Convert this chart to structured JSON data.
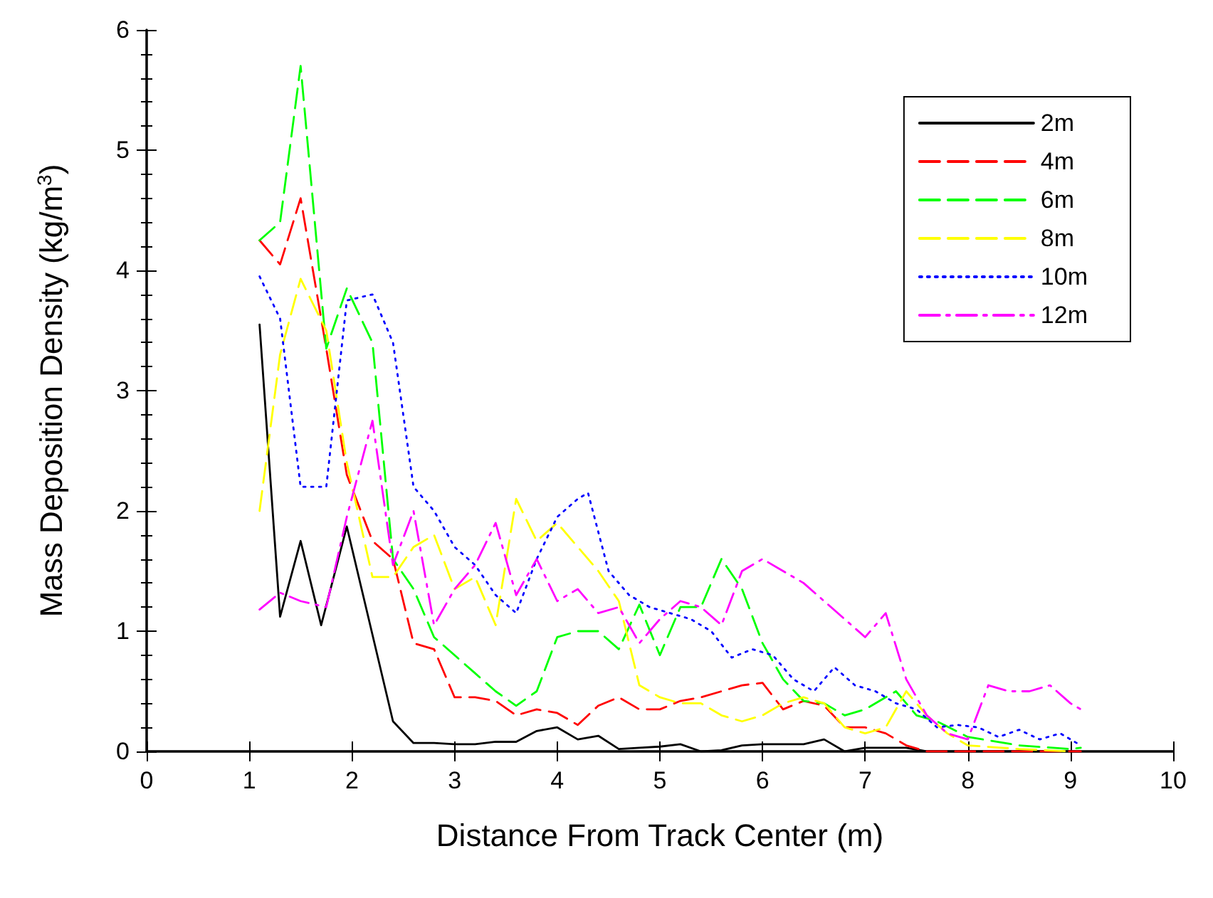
{
  "chart_data": {
    "type": "line",
    "xlabel": "Distance From Track Center (m)",
    "ylabel": "Mass Deposition Density (kg/m$^{3}$)",
    "xlim": [
      0,
      10
    ],
    "xticks": [
      0,
      1,
      2,
      3,
      4,
      5,
      6,
      7,
      8,
      9,
      10
    ],
    "ylim": [
      0,
      6
    ],
    "yticks": [
      0,
      1,
      2,
      3,
      4,
      5,
      6
    ],
    "grid": false,
    "legend": "top right",
    "marker": "none",
    "series": [
      {
        "name": "2m",
        "color": "#000000",
        "line_style": "solid",
        "x": [
          1.1,
          1.3,
          1.5,
          1.7,
          1.95,
          2.4,
          2.6,
          2.8,
          3.0,
          3.2,
          3.4,
          3.6,
          3.8,
          4.0,
          4.2,
          4.4,
          4.6,
          4.8,
          5.0,
          5.2,
          5.4,
          5.6,
          5.8,
          6.0,
          6.2,
          6.4,
          6.6,
          6.8,
          7.0,
          7.2,
          7.4,
          7.6,
          8.0,
          8.5,
          9.1
        ],
        "values": [
          3.55,
          1.12,
          1.75,
          1.05,
          1.87,
          0.25,
          0.07,
          0.07,
          0.06,
          0.06,
          0.08,
          0.08,
          0.17,
          0.2,
          0.1,
          0.13,
          0.02,
          0.03,
          0.04,
          0.06,
          0.0,
          0.01,
          0.05,
          0.06,
          0.06,
          0.06,
          0.1,
          0.0,
          0.03,
          0.03,
          0.03,
          0.0,
          0.0,
          0.0,
          0.0
        ]
      },
      {
        "name": "4m",
        "color": "#ff0000",
        "line_style": "dashed",
        "x": [
          1.1,
          1.3,
          1.5,
          1.75,
          1.95,
          2.2,
          2.4,
          2.6,
          2.8,
          3.0,
          3.2,
          3.4,
          3.6,
          3.8,
          4.0,
          4.2,
          4.4,
          4.6,
          4.8,
          5.0,
          5.2,
          5.4,
          5.6,
          5.8,
          6.0,
          6.2,
          6.4,
          6.6,
          6.8,
          7.0,
          7.2,
          7.4,
          7.6,
          8.0,
          8.5,
          9.1
        ],
        "values": [
          4.25,
          4.05,
          4.6,
          3.35,
          2.3,
          1.75,
          1.6,
          0.9,
          0.85,
          0.45,
          0.45,
          0.42,
          0.3,
          0.35,
          0.32,
          0.22,
          0.38,
          0.45,
          0.35,
          0.35,
          0.42,
          0.45,
          0.5,
          0.55,
          0.57,
          0.35,
          0.42,
          0.38,
          0.2,
          0.2,
          0.15,
          0.05,
          0.0,
          0.0,
          0.0,
          0.0
        ]
      },
      {
        "name": "6m",
        "color": "#00ff00",
        "line_style": "dashed",
        "x": [
          1.1,
          1.3,
          1.5,
          1.75,
          1.95,
          2.2,
          2.4,
          2.6,
          2.8,
          3.0,
          3.2,
          3.4,
          3.6,
          3.8,
          4.0,
          4.2,
          4.4,
          4.6,
          4.8,
          5.0,
          5.2,
          5.4,
          5.6,
          5.8,
          6.0,
          6.2,
          6.4,
          6.6,
          6.8,
          7.0,
          7.3,
          7.5,
          7.7,
          8.0,
          8.5,
          9.0,
          9.1
        ],
        "values": [
          4.25,
          4.4,
          5.7,
          3.35,
          3.85,
          3.4,
          1.6,
          1.35,
          0.95,
          0.8,
          0.65,
          0.5,
          0.38,
          0.5,
          0.95,
          1.0,
          1.0,
          0.85,
          1.22,
          0.8,
          1.2,
          1.2,
          1.6,
          1.35,
          0.9,
          0.6,
          0.42,
          0.4,
          0.3,
          0.35,
          0.5,
          0.3,
          0.25,
          0.12,
          0.05,
          0.02,
          0.03
        ]
      },
      {
        "name": "8m",
        "color": "#ffff00",
        "line_style": "dashed",
        "x": [
          1.1,
          1.3,
          1.5,
          1.75,
          1.95,
          2.2,
          2.4,
          2.6,
          2.8,
          3.0,
          3.2,
          3.4,
          3.6,
          3.8,
          4.0,
          4.2,
          4.4,
          4.6,
          4.8,
          5.0,
          5.2,
          5.4,
          5.6,
          5.8,
          6.0,
          6.2,
          6.4,
          6.6,
          6.8,
          7.0,
          7.2,
          7.4,
          7.6,
          7.8,
          8.0,
          8.5,
          9.0
        ],
        "values": [
          2.0,
          3.3,
          3.93,
          3.5,
          2.4,
          1.45,
          1.45,
          1.7,
          1.8,
          1.35,
          1.45,
          1.05,
          2.1,
          1.75,
          1.9,
          1.7,
          1.5,
          1.25,
          0.55,
          0.45,
          0.4,
          0.4,
          0.3,
          0.25,
          0.3,
          0.4,
          0.45,
          0.4,
          0.2,
          0.15,
          0.2,
          0.5,
          0.3,
          0.15,
          0.05,
          0.02,
          0.0
        ]
      },
      {
        "name": "10m",
        "color": "#0000ff",
        "line_style": "dotted",
        "x": [
          1.1,
          1.3,
          1.5,
          1.75,
          1.95,
          2.2,
          2.4,
          2.6,
          2.8,
          3.0,
          3.2,
          3.4,
          3.6,
          3.8,
          4.0,
          4.2,
          4.3,
          4.5,
          4.7,
          4.9,
          5.1,
          5.3,
          5.5,
          5.7,
          5.9,
          6.1,
          6.3,
          6.5,
          6.7,
          6.9,
          7.1,
          7.3,
          7.5,
          7.7,
          7.9,
          8.1,
          8.3,
          8.5,
          8.7,
          8.9,
          9.1
        ],
        "values": [
          3.95,
          3.6,
          2.2,
          2.2,
          3.75,
          3.8,
          3.4,
          2.2,
          2.0,
          1.7,
          1.55,
          1.3,
          1.15,
          1.6,
          1.95,
          2.1,
          2.15,
          1.5,
          1.3,
          1.2,
          1.15,
          1.1,
          1.0,
          0.78,
          0.85,
          0.8,
          0.6,
          0.5,
          0.7,
          0.55,
          0.5,
          0.4,
          0.35,
          0.2,
          0.22,
          0.2,
          0.12,
          0.18,
          0.1,
          0.15,
          0.05
        ]
      },
      {
        "name": "12m",
        "color": "#ff00ff",
        "line_style": "dashdot",
        "x": [
          1.1,
          1.3,
          1.5,
          1.75,
          1.95,
          2.2,
          2.4,
          2.6,
          2.8,
          3.0,
          3.2,
          3.4,
          3.6,
          3.8,
          4.0,
          4.2,
          4.4,
          4.6,
          4.8,
          5.0,
          5.2,
          5.4,
          5.6,
          5.8,
          6.0,
          6.2,
          6.4,
          6.6,
          6.8,
          7.0,
          7.2,
          7.4,
          7.6,
          7.8,
          8.0,
          8.2,
          8.4,
          8.6,
          8.8,
          9.0,
          9.1
        ],
        "values": [
          1.18,
          1.32,
          1.25,
          1.2,
          1.95,
          2.75,
          1.55,
          2.0,
          1.05,
          1.35,
          1.55,
          1.9,
          1.3,
          1.6,
          1.25,
          1.35,
          1.15,
          1.2,
          0.9,
          1.1,
          1.25,
          1.2,
          1.05,
          1.5,
          1.6,
          1.5,
          1.4,
          1.25,
          1.1,
          0.95,
          1.15,
          0.6,
          0.3,
          0.15,
          0.1,
          0.55,
          0.5,
          0.5,
          0.55,
          0.4,
          0.35
        ]
      }
    ]
  }
}
